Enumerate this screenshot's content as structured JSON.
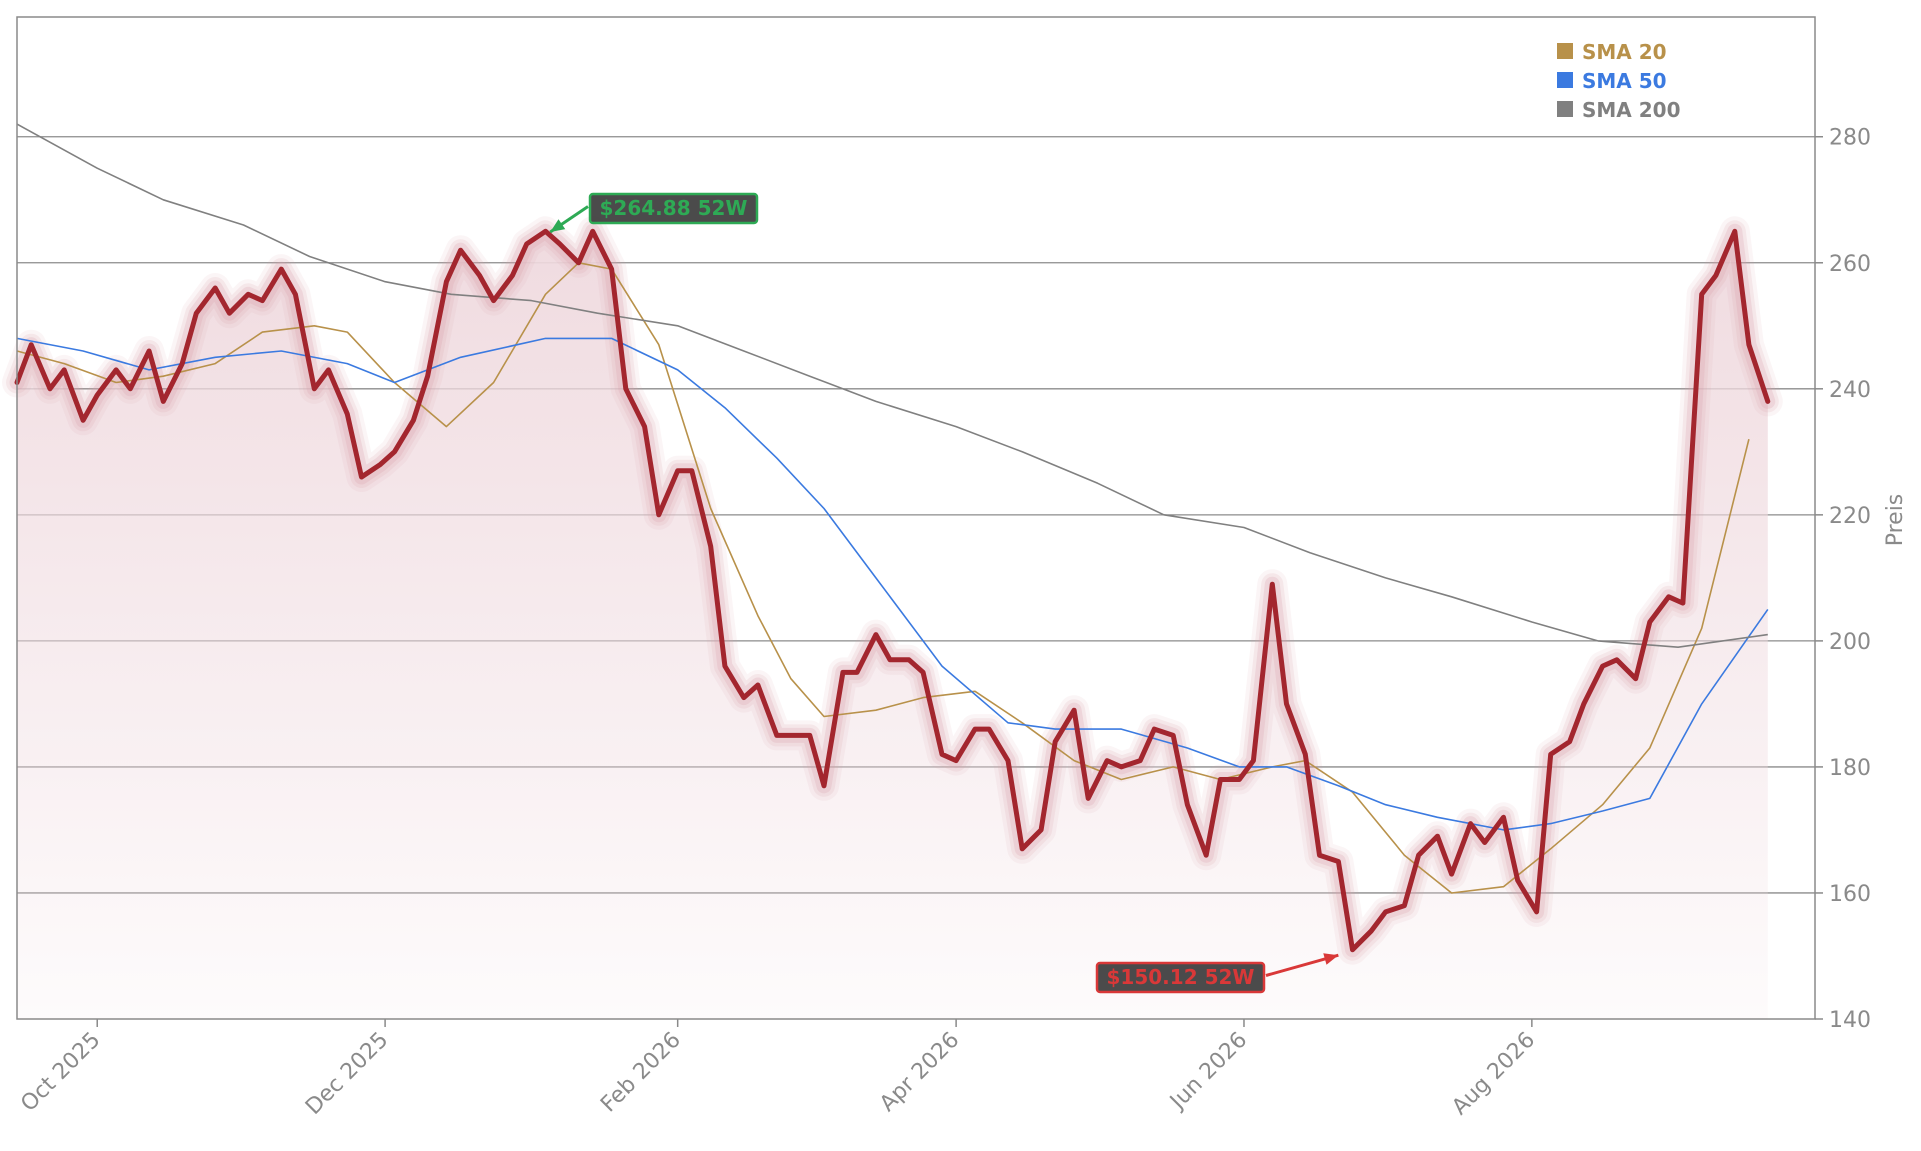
{
  "chart_data": {
    "type": "line",
    "title": "",
    "xlabel": "",
    "ylabel": "Preis",
    "ylim": [
      140,
      299
    ],
    "xlim": [
      "2025-09-14",
      "2026-09-30"
    ],
    "y_axis_side": "right",
    "y_ticks": [
      140,
      160,
      180,
      200,
      220,
      240,
      260,
      280
    ],
    "y_tick_labels": [
      "140",
      "160",
      "180",
      "200",
      "220",
      "240",
      "260",
      "280"
    ],
    "x_ticks": [
      "2025-10-01",
      "2025-12-01",
      "2026-02-01",
      "2026-04-01",
      "2026-06-01",
      "2026-08-01"
    ],
    "x_tick_labels": [
      "Oct 2025",
      "Dec 2025",
      "Feb 2026",
      "Apr 2026",
      "Jun 2026",
      "Aug 2026"
    ],
    "grid": "horizontal",
    "legend_position": "top-right",
    "colors": {
      "price": "#a3262e",
      "price_glow": "#d9a0ab",
      "fill": "#efd9de",
      "sma20": "#b8914a",
      "sma50": "#3b7ae0",
      "sma200": "#808080",
      "high": "#2eaa55",
      "low": "#d93838"
    },
    "series": [
      {
        "name": "",
        "role": "price",
        "x": [
          "2025-09-14",
          "2025-09-17",
          "2025-09-21",
          "2025-09-24",
          "2025-09-28",
          "2025-10-01",
          "2025-10-05",
          "2025-10-08",
          "2025-10-12",
          "2025-10-15",
          "2025-10-19",
          "2025-10-22",
          "2025-10-26",
          "2025-10-29",
          "2025-11-02",
          "2025-11-05",
          "2025-11-09",
          "2025-11-12",
          "2025-11-16",
          "2025-11-19",
          "2025-11-23",
          "2025-11-26",
          "2025-11-30",
          "2025-12-03",
          "2025-12-07",
          "2025-12-10",
          "2025-12-14",
          "2025-12-17",
          "2025-12-21",
          "2025-12-24",
          "2025-12-28",
          "2025-12-31",
          "2026-01-04",
          "2026-01-07",
          "2026-01-11",
          "2026-01-14",
          "2026-01-18",
          "2026-01-21",
          "2026-01-25",
          "2026-01-28",
          "2026-02-01",
          "2026-02-04",
          "2026-02-08",
          "2026-02-11",
          "2026-02-15",
          "2026-02-18",
          "2026-02-22",
          "2026-02-25",
          "2026-03-01",
          "2026-03-04",
          "2026-03-08",
          "2026-03-11",
          "2026-03-15",
          "2026-03-18",
          "2026-03-22",
          "2026-03-25",
          "2026-03-29",
          "2026-04-01",
          "2026-04-05",
          "2026-04-08",
          "2026-04-12",
          "2026-04-15",
          "2026-04-19",
          "2026-04-22",
          "2026-04-26",
          "2026-04-29",
          "2026-05-03",
          "2026-05-06",
          "2026-05-10",
          "2026-05-13",
          "2026-05-17",
          "2026-05-20",
          "2026-05-24",
          "2026-05-27",
          "2026-05-31",
          "2026-06-03",
          "2026-06-07",
          "2026-06-10",
          "2026-06-14",
          "2026-06-17",
          "2026-06-21",
          "2026-06-24",
          "2026-06-28",
          "2026-07-01",
          "2026-07-05",
          "2026-07-08",
          "2026-07-12",
          "2026-07-15",
          "2026-07-19",
          "2026-07-22",
          "2026-07-26",
          "2026-07-29",
          "2026-08-02",
          "2026-08-05",
          "2026-08-09",
          "2026-08-12",
          "2026-08-16",
          "2026-08-19",
          "2026-08-23",
          "2026-08-26",
          "2026-08-30",
          "2026-09-02",
          "2026-09-06",
          "2026-09-09",
          "2026-09-13",
          "2026-09-16",
          "2026-09-20"
        ],
        "values": [
          241,
          247,
          240,
          243,
          235,
          239,
          243,
          240,
          246,
          238,
          244,
          252,
          256,
          252,
          255,
          254,
          259,
          255,
          240,
          243,
          236,
          226,
          228,
          230,
          235,
          242,
          257,
          262,
          258,
          254,
          258,
          263,
          265,
          263,
          260,
          265,
          259,
          240,
          234,
          220,
          227,
          227,
          215,
          196,
          191,
          193,
          185,
          185,
          185,
          177,
          195,
          195,
          201,
          197,
          197,
          195,
          182,
          181,
          186,
          186,
          181,
          167,
          170,
          184,
          189,
          175,
          181,
          180,
          181,
          186,
          185,
          174,
          166,
          178,
          178,
          181,
          209,
          190,
          182,
          166,
          165,
          151,
          154,
          157,
          158,
          166,
          169,
          163,
          171,
          168,
          172,
          162,
          157,
          182,
          184,
          190,
          196,
          197,
          194,
          203,
          207,
          206,
          255,
          258,
          265,
          247,
          238
        ]
      },
      {
        "name": "SMA 20",
        "x": [
          "2025-09-14",
          "2025-09-24",
          "2025-10-05",
          "2025-10-15",
          "2025-10-26",
          "2025-11-05",
          "2025-11-16",
          "2025-11-23",
          "2025-12-03",
          "2025-12-14",
          "2025-12-24",
          "2026-01-04",
          "2026-01-11",
          "2026-01-18",
          "2026-01-28",
          "2026-02-08",
          "2026-02-18",
          "2026-02-25",
          "2026-03-04",
          "2026-03-15",
          "2026-03-25",
          "2026-04-05",
          "2026-04-15",
          "2026-04-26",
          "2026-05-06",
          "2026-05-17",
          "2026-05-27",
          "2026-06-07",
          "2026-06-14",
          "2026-06-24",
          "2026-07-05",
          "2026-07-15",
          "2026-07-26",
          "2026-08-05",
          "2026-08-16",
          "2026-08-26",
          "2026-09-06",
          "2026-09-16"
        ],
        "values": [
          246,
          244,
          241,
          242,
          244,
          249,
          250,
          249,
          241,
          234,
          241,
          255,
          260,
          259,
          247,
          221,
          204,
          194,
          188,
          189,
          191,
          192,
          187,
          181,
          178,
          180,
          178,
          180,
          181,
          176,
          166,
          160,
          161,
          167,
          174,
          183,
          202,
          232
        ]
      },
      {
        "name": "SMA 50",
        "x": [
          "2025-09-14",
          "2025-09-28",
          "2025-10-12",
          "2025-10-26",
          "2025-11-09",
          "2025-11-23",
          "2025-12-03",
          "2025-12-17",
          "2026-01-04",
          "2026-01-18",
          "2026-02-01",
          "2026-02-11",
          "2026-02-22",
          "2026-03-04",
          "2026-03-15",
          "2026-03-29",
          "2026-04-12",
          "2026-04-22",
          "2026-05-06",
          "2026-05-20",
          "2026-05-31",
          "2026-06-10",
          "2026-06-21",
          "2026-07-01",
          "2026-07-12",
          "2026-07-26",
          "2026-08-05",
          "2026-08-16",
          "2026-08-26",
          "2026-09-06",
          "2026-09-20"
        ],
        "values": [
          248,
          246,
          243,
          245,
          246,
          244,
          241,
          245,
          248,
          248,
          243,
          237,
          229,
          221,
          210,
          196,
          187,
          186,
          186,
          183,
          180,
          180,
          177,
          174,
          172,
          170,
          171,
          173,
          175,
          190,
          205
        ]
      },
      {
        "name": "SMA 200",
        "x": [
          "2025-09-14",
          "2025-10-01",
          "2025-10-15",
          "2025-11-01",
          "2025-11-15",
          "2025-12-01",
          "2025-12-15",
          "2026-01-01",
          "2026-01-15",
          "2026-02-01",
          "2026-02-15",
          "2026-03-01",
          "2026-03-15",
          "2026-04-01",
          "2026-04-15",
          "2026-05-01",
          "2026-05-15",
          "2026-06-01",
          "2026-06-15",
          "2026-07-01",
          "2026-07-15",
          "2026-08-01",
          "2026-08-15",
          "2026-09-01",
          "2026-09-20"
        ],
        "values": [
          282,
          275,
          270,
          266,
          261,
          257,
          255,
          254,
          252,
          250,
          246,
          242,
          238,
          234,
          230,
          225,
          220,
          218,
          214,
          210,
          207,
          203,
          200,
          199,
          201
        ]
      }
    ],
    "annotations": [
      {
        "label": "$264.88 52W",
        "x": "2026-01-05",
        "y": 264.88,
        "role": "high"
      },
      {
        "label": "$150.12 52W",
        "x": "2026-06-21",
        "y": 150.12,
        "role": "low"
      }
    ]
  }
}
